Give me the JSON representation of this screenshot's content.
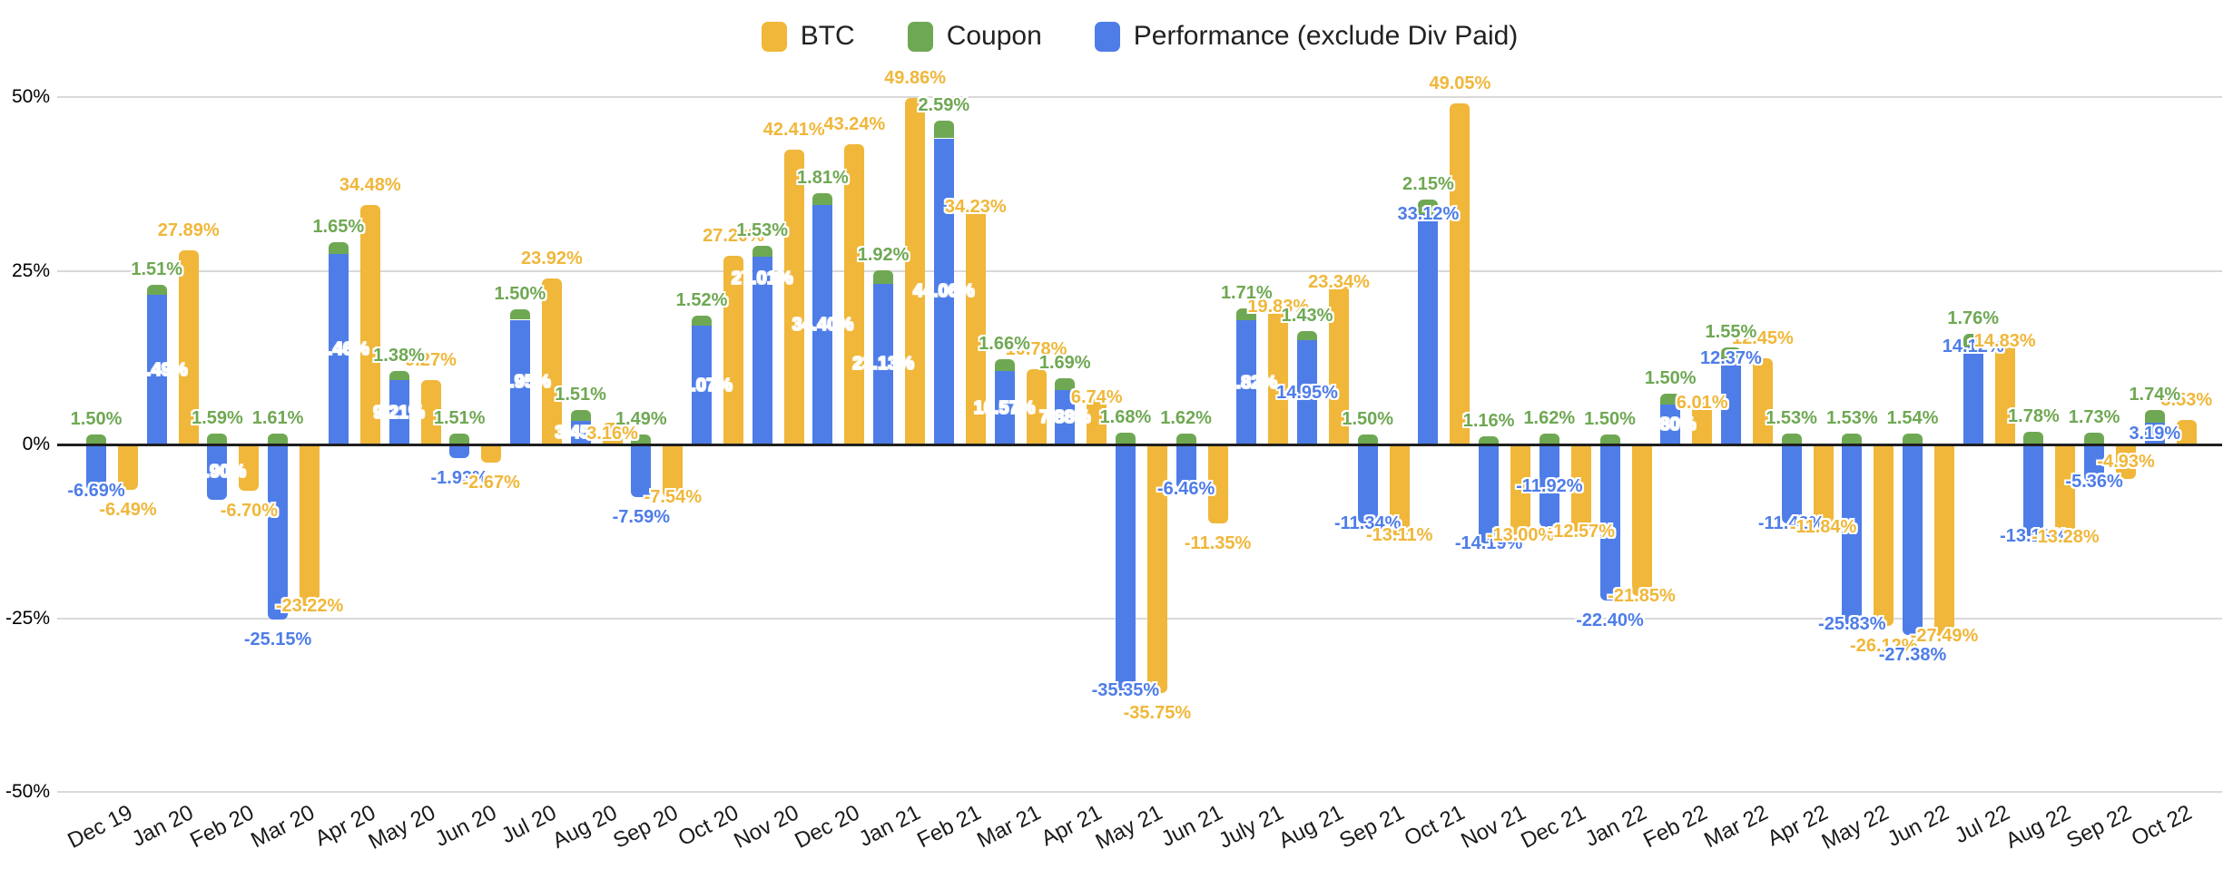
{
  "legend": {
    "position": "top-center",
    "items": [
      {
        "label": "BTC",
        "color": "#F0B73A"
      },
      {
        "label": "Coupon",
        "color": "#6FA853"
      },
      {
        "label": "Performance (exclude Div Paid)",
        "color": "#4E7DE8"
      }
    ]
  },
  "y_axis": {
    "tick_labels": [
      "50%",
      "25%",
      "0%",
      "-25%",
      "-50%"
    ],
    "tick_values": [
      50,
      25,
      0,
      -25,
      -50
    ]
  },
  "chart_data": {
    "type": "bar",
    "title": "",
    "xlabel": "",
    "ylabel": "",
    "ylim": [
      -50,
      50
    ],
    "grid": true,
    "legend_position": "top-center",
    "label_format": "0.00%",
    "structure": "Performance and Coupon are stacked in one column; BTC is a separate column per category",
    "categories": [
      "Dec 19",
      "Jan 20",
      "Feb 20",
      "Mar 20",
      "Apr 20",
      "May 20",
      "Jun 20",
      "Jul 20",
      "Aug 20",
      "Sep 20",
      "Oct 20",
      "Nov 20",
      "Dec 20",
      "Jan 21",
      "Feb 21",
      "Mar 21",
      "Apr 21",
      "May 21",
      "Jun 21",
      "July 21",
      "Aug 21",
      "Sep 21",
      "Oct 21",
      "Nov 21",
      "Dec 21",
      "Jan 22",
      "Feb 22",
      "Mar 22",
      "Apr 22",
      "May 22",
      "Jun 22",
      "Jul 22",
      "Aug 22",
      "Sep 22",
      "Oct 22"
    ],
    "series": [
      {
        "name": "BTC",
        "color": "#F0B73A",
        "values": [
          -6.49,
          27.89,
          -6.7,
          -23.22,
          34.48,
          9.27,
          -2.67,
          23.92,
          3.16,
          -7.54,
          27.2,
          42.41,
          43.24,
          49.86,
          34.23,
          10.78,
          6.74,
          -35.75,
          -11.35,
          19.83,
          23.34,
          -13.11,
          49.05,
          -13.0,
          -12.57,
          -21.85,
          6.01,
          12.45,
          -11.84,
          -26.12,
          -27.49,
          14.83,
          -13.28,
          -4.93,
          3.53
        ],
        "label_placement": [
          "o",
          "o",
          "o",
          "e",
          "o",
          "o",
          "o",
          "o",
          "cs",
          "e",
          "o",
          "o",
          "o",
          "o",
          "e",
          "o",
          "e",
          "o",
          "o",
          "e",
          "e",
          "e",
          "o",
          "e",
          "e",
          "e",
          "e",
          "o",
          "e",
          "o",
          "e",
          "e",
          "e",
          "cs",
          "o"
        ]
      },
      {
        "name": "Coupon",
        "color": "#6FA853",
        "values": [
          1.5,
          1.51,
          1.59,
          1.61,
          1.65,
          1.38,
          1.51,
          1.5,
          1.51,
          1.49,
          1.52,
          1.53,
          1.81,
          1.92,
          2.59,
          1.66,
          1.69,
          1.68,
          1.62,
          1.71,
          1.43,
          1.5,
          2.15,
          1.16,
          1.62,
          1.5,
          1.5,
          1.55,
          1.53,
          1.53,
          1.54,
          1.76,
          1.78,
          1.73,
          1.74
        ],
        "label_placement": [
          "o",
          "o",
          "o",
          "o",
          "o",
          "o",
          "o",
          "o",
          "o",
          "o",
          "o",
          "o",
          "o",
          "o",
          "o",
          "o",
          "o",
          "o",
          "o",
          "o",
          "o",
          "o",
          "o",
          "o",
          "o",
          "o",
          "o",
          "o",
          "o",
          "o",
          "o",
          "o",
          "o",
          "o",
          "o"
        ]
      },
      {
        "name": "Performance (exclude Div Paid)",
        "color": "#4E7DE8",
        "values": [
          -6.69,
          21.49,
          -7.9,
          -25.15,
          27.46,
          9.21,
          -1.93,
          17.95,
          3.45,
          -7.59,
          17.07,
          27.01,
          34.4,
          23.13,
          44.06,
          10.57,
          7.88,
          -35.35,
          -6.46,
          17.82,
          14.95,
          -11.34,
          33.12,
          -14.19,
          -11.92,
          -22.4,
          5.8,
          12.37,
          -11.42,
          -25.83,
          -27.38,
          14.12,
          -13.13,
          -5.36,
          3.19
        ],
        "label_placement": [
          "e",
          "c",
          "c",
          "o",
          "c",
          "c",
          "o",
          "c",
          "c",
          "o",
          "c",
          "ct",
          "c",
          "c",
          "c",
          "c",
          "c",
          "e",
          "e",
          "c",
          "cs",
          "e",
          "e",
          "e",
          "cs",
          "o",
          "c",
          "e",
          "e",
          "e",
          "o",
          "e",
          "e",
          "e",
          "cs"
        ]
      }
    ],
    "placement_legend": "c=white label centered inside bar, ct=white label inside near bar end, cs=series-color label centered inside bar, e=series-color label straddling bar end, o=series-color label just beyond bar end"
  }
}
